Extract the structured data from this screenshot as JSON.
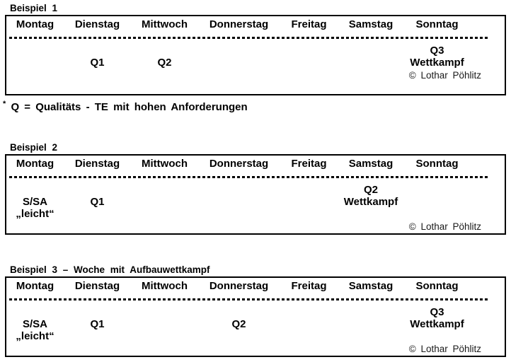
{
  "colors": {
    "background": "#ffffff",
    "text": "#000000",
    "border": "#000000"
  },
  "days": [
    "Montag",
    "Dienstag",
    "Mittwoch",
    "Donnerstag",
    "Freitag",
    "Samstag",
    "Sonntag"
  ],
  "copyright": "© Lothar Pöhlitz",
  "footnote": {
    "marker": "*",
    "text": "Q = Qualitäts - TE mit hohen Anforderungen"
  },
  "examples": [
    {
      "title": "Beispiel 1",
      "rows": [
        [
          "",
          "",
          "",
          "",
          "",
          "",
          "Q3"
        ],
        [
          "",
          "Q1",
          "Q2",
          "",
          "",
          "",
          "Wettkampf"
        ],
        [
          "",
          "",
          "",
          "",
          "",
          "",
          ""
        ]
      ]
    },
    {
      "title": "Beispiel 2",
      "rows": [
        [
          "",
          "",
          "",
          "",
          "",
          "Q2",
          ""
        ],
        [
          "S/SA",
          "Q1",
          "",
          "",
          "",
          "Wettkampf",
          ""
        ],
        [
          "„leicht“",
          "",
          "",
          "",
          "",
          "",
          ""
        ]
      ]
    },
    {
      "title": "Beispiel 3 – Woche mit Aufbauwettkampf",
      "rows": [
        [
          "",
          "",
          "",
          "",
          "",
          "",
          "Q3"
        ],
        [
          "S/SA",
          "Q1",
          "",
          "Q2",
          "",
          "",
          "Wettkampf"
        ],
        [
          "„leicht“",
          "",
          "",
          "",
          "",
          "",
          ""
        ]
      ]
    }
  ]
}
